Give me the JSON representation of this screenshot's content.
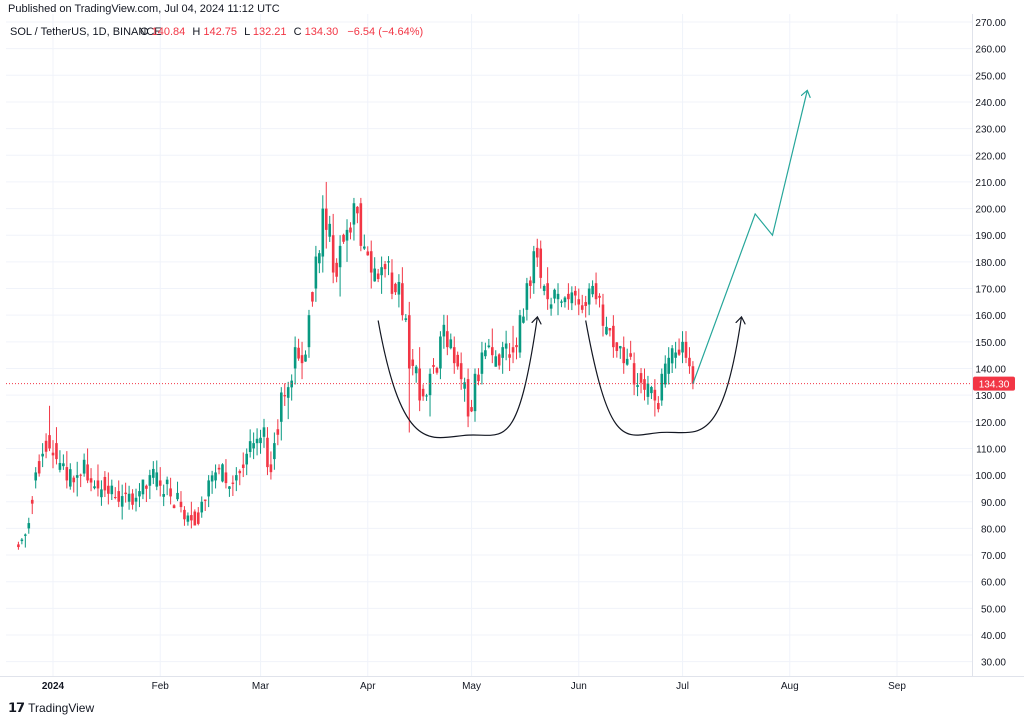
{
  "published_line": "Published on TradingView.com, Jul 04, 2024 11:12 UTC",
  "brand": {
    "name": "TradingView",
    "logo_icon": "tradingview-logo-icon"
  },
  "colors": {
    "up": "#089981",
    "down": "#f23645",
    "price_tag": "#f23645",
    "projection": "#26a69a",
    "curve": "#131722"
  },
  "legend": {
    "symbol": "SOL / TetherUS, 1D, BINANCE",
    "o_label": "O",
    "o": "140.84",
    "h_label": "H",
    "h": "142.75",
    "l_label": "L",
    "l": "132.21",
    "c_label": "C",
    "c": "134.30",
    "change": "−6.54 (−4.64%)"
  },
  "last_price_tag": "134.30",
  "chart_data": {
    "type": "candlestick",
    "symbol": "SOL / TetherUS",
    "interval": "1D",
    "exchange": "BINANCE",
    "x_range": [
      "2023-12-22",
      "2024-09-30"
    ],
    "y_range": [
      20,
      270
    ],
    "y_ticks": [
      "270.00",
      "260.00",
      "250.00",
      "240.00",
      "230.00",
      "220.00",
      "210.00",
      "200.00",
      "190.00",
      "180.00",
      "170.00",
      "160.00",
      "150.00",
      "140.00",
      "130.00",
      "120.00",
      "110.00",
      "100.00",
      "90.00",
      "80.00",
      "70.00",
      "60.00",
      "50.00",
      "40.00",
      "30.00"
    ],
    "x_ticks": [
      {
        "label": "2024",
        "date": "2024-01-01"
      },
      {
        "label": "Feb",
        "date": "2024-02-01"
      },
      {
        "label": "Mar",
        "date": "2024-03-01"
      },
      {
        "label": "Apr",
        "date": "2024-04-01"
      },
      {
        "label": "May",
        "date": "2024-05-01"
      },
      {
        "label": "Jun",
        "date": "2024-06-01"
      },
      {
        "label": "Jul",
        "date": "2024-07-01"
      },
      {
        "label": "Aug",
        "date": "2024-08-01"
      },
      {
        "label": "Sep",
        "date": "2024-09-01"
      }
    ],
    "last_price": 134.3,
    "ohlc_anchors": [
      [
        "2023-12-22",
        74,
        75,
        72,
        73
      ],
      [
        "2023-12-25",
        80,
        84,
        78,
        82
      ],
      [
        "2023-12-27",
        98,
        103,
        95,
        101
      ],
      [
        "2023-12-29",
        107,
        112,
        103,
        108
      ],
      [
        "2023-12-31",
        115,
        126,
        109,
        110
      ],
      [
        "2024-01-02",
        112,
        118,
        104,
        106
      ],
      [
        "2024-01-05",
        103,
        109,
        95,
        98
      ],
      [
        "2024-01-08",
        99,
        105,
        92,
        100
      ],
      [
        "2024-01-11",
        104,
        110,
        97,
        98
      ],
      [
        "2024-01-14",
        98,
        104,
        92,
        95
      ],
      [
        "2024-01-17",
        96,
        101,
        89,
        93
      ],
      [
        "2024-01-20",
        94,
        98,
        88,
        90
      ],
      [
        "2024-01-23",
        90,
        96,
        87,
        93
      ],
      [
        "2024-01-26",
        92,
        97,
        88,
        94
      ],
      [
        "2024-01-29",
        96,
        102,
        91,
        100
      ],
      [
        "2024-02-01",
        98,
        103,
        92,
        96
      ],
      [
        "2024-02-04",
        95,
        99,
        89,
        92
      ],
      [
        "2024-02-07",
        90,
        94,
        86,
        88
      ],
      [
        "2024-02-10",
        85,
        90,
        80,
        83
      ],
      [
        "2024-02-13",
        86,
        92,
        84,
        90
      ],
      [
        "2024-02-15",
        92,
        100,
        88,
        98
      ],
      [
        "2024-02-17",
        98,
        104,
        95,
        101
      ],
      [
        "2024-02-20",
        101,
        106,
        95,
        97
      ],
      [
        "2024-02-23",
        98,
        103,
        94,
        100
      ],
      [
        "2024-02-26",
        104,
        110,
        100,
        108
      ],
      [
        "2024-02-28",
        110,
        116,
        106,
        112
      ],
      [
        "2024-03-01",
        112,
        117,
        108,
        114
      ],
      [
        "2024-03-03",
        114,
        118,
        100,
        103
      ],
      [
        "2024-03-05",
        106,
        116,
        102,
        112
      ],
      [
        "2024-03-07",
        120,
        133,
        113,
        131
      ],
      [
        "2024-03-09",
        129,
        135,
        121,
        133
      ],
      [
        "2024-03-11",
        140,
        152,
        134,
        148
      ],
      [
        "2024-03-13",
        145,
        150,
        136,
        142
      ],
      [
        "2024-03-15",
        148,
        162,
        144,
        160
      ],
      [
        "2024-03-17",
        170,
        186,
        165,
        182
      ],
      [
        "2024-03-19",
        182,
        205,
        176,
        200
      ],
      [
        "2024-03-20",
        200,
        210,
        185,
        192
      ],
      [
        "2024-03-22",
        190,
        198,
        172,
        176
      ],
      [
        "2024-03-24",
        178,
        190,
        167,
        186
      ],
      [
        "2024-03-26",
        188,
        196,
        180,
        192
      ],
      [
        "2024-03-28",
        194,
        204,
        188,
        202
      ],
      [
        "2024-03-30",
        202,
        204,
        184,
        186
      ],
      [
        "2024-04-02",
        184,
        188,
        170,
        176
      ],
      [
        "2024-04-05",
        175,
        182,
        168,
        178
      ],
      [
        "2024-04-08",
        176,
        181,
        166,
        168
      ],
      [
        "2024-04-11",
        172,
        178,
        158,
        160
      ],
      [
        "2024-04-13",
        160,
        165,
        116,
        140
      ],
      [
        "2024-04-16",
        140,
        148,
        124,
        128
      ],
      [
        "2024-04-19",
        130,
        140,
        122,
        138
      ],
      [
        "2024-04-22",
        140,
        154,
        136,
        152
      ],
      [
        "2024-04-24",
        154,
        160,
        145,
        148
      ],
      [
        "2024-04-26",
        148,
        152,
        138,
        142
      ],
      [
        "2024-04-28",
        142,
        146,
        132,
        136
      ],
      [
        "2024-04-30",
        136,
        140,
        118,
        122
      ],
      [
        "2024-05-02",
        124,
        140,
        120,
        138
      ],
      [
        "2024-05-04",
        138,
        150,
        134,
        146
      ],
      [
        "2024-05-07",
        148,
        155,
        142,
        145
      ],
      [
        "2024-05-10",
        144,
        150,
        138,
        148
      ],
      [
        "2024-05-13",
        148,
        156,
        142,
        146
      ],
      [
        "2024-05-15",
        146,
        162,
        144,
        160
      ],
      [
        "2024-05-17",
        162,
        174,
        158,
        172
      ],
      [
        "2024-05-19",
        172,
        186,
        168,
        184
      ],
      [
        "2024-05-21",
        185,
        188,
        170,
        174
      ],
      [
        "2024-05-23",
        172,
        178,
        162,
        166
      ],
      [
        "2024-05-26",
        166,
        172,
        160,
        168
      ],
      [
        "2024-05-29",
        168,
        172,
        162,
        166
      ],
      [
        "2024-06-01",
        166,
        170,
        160,
        164
      ],
      [
        "2024-06-04",
        164,
        172,
        160,
        170
      ],
      [
        "2024-06-06",
        172,
        176,
        164,
        166
      ],
      [
        "2024-06-08",
        164,
        168,
        152,
        156
      ],
      [
        "2024-06-11",
        156,
        160,
        144,
        148
      ],
      [
        "2024-06-14",
        148,
        152,
        138,
        142
      ],
      [
        "2024-06-17",
        142,
        146,
        130,
        134
      ],
      [
        "2024-06-20",
        136,
        140,
        128,
        132
      ],
      [
        "2024-06-23",
        132,
        136,
        122,
        128
      ],
      [
        "2024-06-25",
        128,
        140,
        126,
        138
      ],
      [
        "2024-06-27",
        138,
        148,
        134,
        144
      ],
      [
        "2024-06-29",
        144,
        150,
        140,
        146
      ],
      [
        "2024-07-01",
        146,
        154,
        142,
        150
      ],
      [
        "2024-07-02",
        150,
        154,
        142,
        144
      ],
      [
        "2024-07-03",
        144,
        148,
        138,
        140.84
      ],
      [
        "2024-07-04",
        140.84,
        142.75,
        132.21,
        134.3
      ]
    ],
    "annotations": {
      "curves": [
        {
          "from": {
            "date": "2024-04-04",
            "price": 158
          },
          "bottom": {
            "date": "2024-04-30",
            "price": 115
          },
          "to": {
            "date": "2024-05-20",
            "price": 159
          }
        },
        {
          "from": {
            "date": "2024-06-03",
            "price": 158
          },
          "bottom": {
            "date": "2024-06-25",
            "price": 116
          },
          "to": {
            "date": "2024-07-18",
            "price": 159
          }
        }
      ],
      "projection": [
        {
          "date": "2024-07-04",
          "price": 134.3
        },
        {
          "date": "2024-07-22",
          "price": 198
        },
        {
          "date": "2024-07-27",
          "price": 190
        },
        {
          "date": "2024-08-06",
          "price": 244
        }
      ]
    }
  }
}
